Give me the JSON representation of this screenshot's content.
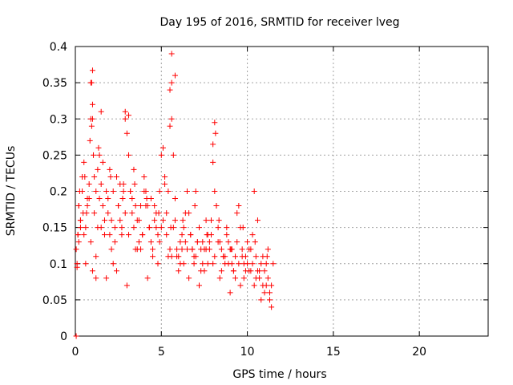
{
  "chart_data": {
    "type": "scatter",
    "title": "Day 195 of 2016, SRMTID for receiver lveg",
    "xlabel": "GPS time / hours",
    "ylabel": "SRMTID / TECUs",
    "xlim": [
      0,
      24
    ],
    "ylim": [
      0,
      0.4
    ],
    "xticks": [
      0,
      5,
      10,
      15,
      20
    ],
    "yticks": [
      0,
      0.05,
      0.1,
      0.15,
      0.2,
      0.25,
      0.3,
      0.35,
      0.4
    ],
    "xtick_labels": [
      "0",
      "5",
      "10",
      "15",
      "20"
    ],
    "ytick_labels": [
      "0",
      "0.05",
      "0.1",
      "0.15",
      "0.2",
      "0.25",
      "0.3",
      "0.35",
      "0.4"
    ],
    "grid": true,
    "marker": "+",
    "color": "#ff0000",
    "series": [
      {
        "name": "SRMTID",
        "x": [
          0.05,
          0.1,
          0.15,
          0.2,
          0.25,
          0.3,
          0.1,
          0.2,
          0.3,
          0.4,
          0.45,
          0.5,
          0.55,
          0.6,
          0.7,
          0.8,
          0.85,
          0.9,
          0.95,
          1.0,
          1.05,
          1.1,
          1.2,
          1.3,
          1.4,
          1.5,
          1.6,
          1.7,
          1.8,
          1.9,
          2.0,
          2.1,
          2.2,
          2.3,
          2.4,
          2.5,
          2.6,
          2.7,
          2.8,
          2.9,
          3.0,
          3.1,
          3.2,
          3.3,
          3.4,
          3.5,
          3.6,
          3.7,
          3.8,
          3.9,
          4.0,
          4.1,
          4.2,
          4.3,
          4.4,
          4.5,
          4.6,
          4.7,
          4.8,
          4.9,
          5.0,
          5.1,
          5.2,
          5.3,
          5.4,
          5.5,
          5.6,
          5.7,
          5.8,
          5.9,
          6.0,
          6.1,
          6.2,
          6.3,
          6.4,
          6.5,
          6.6,
          6.7,
          6.8,
          6.9,
          7.0,
          7.1,
          7.2,
          7.3,
          7.4,
          7.5,
          7.6,
          7.7,
          7.8,
          7.9,
          8.0,
          8.1,
          8.2,
          8.3,
          8.4,
          8.5,
          8.6,
          8.7,
          8.8,
          8.9,
          9.0,
          9.1,
          9.2,
          9.3,
          9.4,
          9.5,
          9.6,
          9.7,
          9.8,
          9.9,
          10.0,
          10.1,
          10.2,
          10.3,
          10.4,
          10.5,
          10.6,
          10.7,
          10.8,
          10.9,
          11.0,
          11.1,
          11.2,
          11.3,
          11.4,
          11.5,
          0.9,
          1.0,
          0.95,
          1.0,
          1.5,
          2.9,
          3.1,
          5.6,
          5.8,
          5.5,
          5.6,
          8.1,
          8.15,
          8.0,
          0.3,
          0.5,
          0.7,
          0.9,
          1.1,
          1.3,
          1.5,
          1.7,
          1.9,
          2.1,
          2.3,
          2.5,
          2.7,
          2.9,
          3.1,
          3.3,
          3.5,
          3.7,
          3.9,
          4.1,
          4.3,
          4.5,
          4.7,
          4.9,
          5.1,
          5.3,
          5.5,
          5.7,
          5.9,
          6.1,
          6.3,
          6.5,
          6.7,
          6.9,
          7.1,
          7.3,
          7.5,
          7.7,
          7.9,
          8.1,
          8.3,
          8.5,
          8.7,
          8.9,
          9.1,
          9.3,
          9.5,
          9.7,
          9.9,
          10.1,
          10.3,
          10.5,
          10.7,
          10.9,
          11.1,
          11.3,
          0.2,
          0.6,
          1.2,
          1.8,
          2.4,
          3.0,
          3.6,
          4.2,
          4.8,
          5.4,
          6.0,
          6.6,
          7.2,
          7.8,
          8.4,
          9.0,
          9.6,
          10.2,
          10.8,
          11.4,
          0.4,
          0.8,
          1.6,
          2.2,
          2.8,
          3.4,
          4.0,
          4.6,
          5.2,
          5.8,
          6.4,
          7.0,
          7.6,
          8.2,
          8.8,
          9.4,
          10.0,
          10.6,
          11.2,
          0.15,
          0.65,
          1.35,
          2.05,
          2.75,
          3.45,
          4.15,
          4.85,
          5.55,
          6.25,
          6.95,
          7.65,
          8.35,
          9.05,
          9.75,
          10.45,
          11.15,
          1.0,
          1.2,
          1.4,
          2.0,
          2.6,
          3.2,
          3.8,
          4.4,
          5.0,
          5.6,
          6.2,
          6.8,
          7.4,
          8.0,
          8.6,
          9.2,
          9.8,
          10.4,
          11.0,
          0.05
        ],
        "y": [
          0.12,
          0.1,
          0.14,
          0.18,
          0.2,
          0.16,
          0.095,
          0.13,
          0.15,
          0.2,
          0.17,
          0.24,
          0.22,
          0.15,
          0.19,
          0.21,
          0.27,
          0.3,
          0.35,
          0.32,
          0.25,
          0.22,
          0.2,
          0.23,
          0.19,
          0.15,
          0.18,
          0.16,
          0.2,
          0.17,
          0.14,
          0.12,
          0.1,
          0.15,
          0.22,
          0.18,
          0.16,
          0.14,
          0.2,
          0.3,
          0.28,
          0.25,
          0.2,
          0.17,
          0.15,
          0.18,
          0.16,
          0.13,
          0.12,
          0.14,
          0.22,
          0.2,
          0.18,
          0.15,
          0.13,
          0.12,
          0.16,
          0.15,
          0.14,
          0.2,
          0.25,
          0.26,
          0.21,
          0.17,
          0.2,
          0.29,
          0.35,
          0.25,
          0.16,
          0.12,
          0.11,
          0.1,
          0.12,
          0.15,
          0.13,
          0.2,
          0.17,
          0.14,
          0.12,
          0.1,
          0.11,
          0.13,
          0.15,
          0.12,
          0.1,
          0.09,
          0.12,
          0.14,
          0.13,
          0.16,
          0.24,
          0.2,
          0.18,
          0.15,
          0.13,
          0.12,
          0.11,
          0.1,
          0.14,
          0.13,
          0.12,
          0.1,
          0.09,
          0.11,
          0.13,
          0.18,
          0.15,
          0.12,
          0.1,
          0.11,
          0.1,
          0.09,
          0.12,
          0.14,
          0.2,
          0.11,
          0.09,
          0.08,
          0.1,
          0.07,
          0.09,
          0.1,
          0.08,
          0.05,
          0.04,
          0.1,
          0.35,
          0.367,
          0.29,
          0.3,
          0.31,
          0.31,
          0.305,
          0.39,
          0.36,
          0.34,
          0.3,
          0.295,
          0.28,
          0.265,
          0.16,
          0.14,
          0.18,
          0.13,
          0.17,
          0.15,
          0.21,
          0.14,
          0.19,
          0.16,
          0.13,
          0.18,
          0.15,
          0.17,
          0.14,
          0.19,
          0.12,
          0.16,
          0.14,
          0.18,
          0.15,
          0.11,
          0.17,
          0.13,
          0.16,
          0.14,
          0.12,
          0.15,
          0.11,
          0.13,
          0.1,
          0.12,
          0.14,
          0.11,
          0.13,
          0.09,
          0.12,
          0.1,
          0.14,
          0.11,
          0.13,
          0.09,
          0.11,
          0.1,
          0.12,
          0.08,
          0.1,
          0.11,
          0.09,
          0.12,
          0.1,
          0.08,
          0.09,
          0.11,
          0.07,
          0.06,
          0.18,
          0.1,
          0.11,
          0.08,
          0.09,
          0.07,
          0.12,
          0.08,
          0.1,
          0.11,
          0.09,
          0.08,
          0.07,
          0.12,
          0.08,
          0.06,
          0.07,
          0.09,
          0.05,
          0.07,
          0.22,
          0.19,
          0.24,
          0.2,
          0.21,
          0.23,
          0.2,
          0.18,
          0.22,
          0.19,
          0.17,
          0.2,
          0.16,
          0.18,
          0.15,
          0.17,
          0.13,
          0.16,
          0.12,
          0.14,
          0.17,
          0.26,
          0.22,
          0.19,
          0.21,
          0.19,
          0.17,
          0.15,
          0.16,
          0.18,
          0.14,
          0.16,
          0.12,
          0.15,
          0.13,
          0.11,
          0.09,
          0.08,
          0.25,
          0.23,
          0.21,
          0.2,
          0.18,
          0.19,
          0.15,
          0.11,
          0.14,
          0.12,
          0.13,
          0.1,
          0.11,
          0.09,
          0.08,
          0.07,
          0.06,
          0.0
        ]
      }
    ]
  }
}
